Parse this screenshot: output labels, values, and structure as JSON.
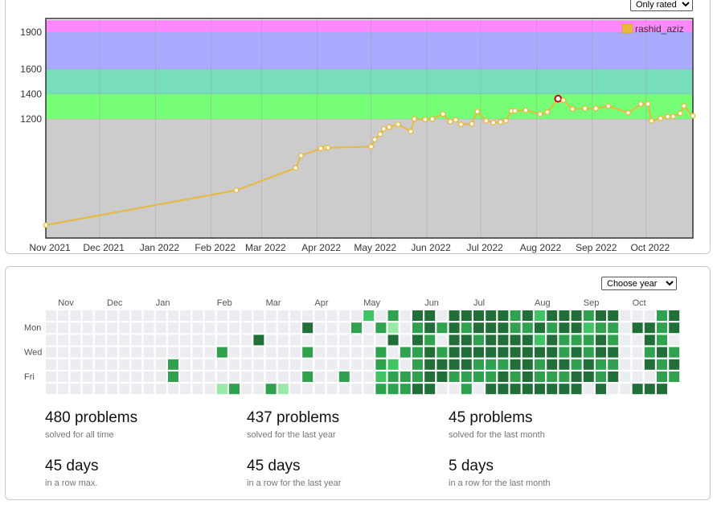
{
  "controls": {
    "rating_filter": "Only rated",
    "year_select": "Choose year"
  },
  "chart_data": {
    "type": "line",
    "title": "",
    "xlabel": "",
    "ylabel": "",
    "legend": {
      "entries": [
        "rashid_aziz"
      ],
      "placement": "top-right"
    },
    "grid": true,
    "y_ticks": [
      1200,
      1400,
      1600,
      1900
    ],
    "y_scale_breakpoints": [
      [
        0,
        0
      ],
      [
        1200,
        1200
      ],
      [
        1400,
        1400
      ],
      [
        1600,
        1600
      ],
      [
        2000,
        2000
      ]
    ],
    "x_ticks": [
      "Nov 2021",
      "Dec 2021",
      "Jan 2022",
      "Feb 2022",
      "Mar 2022",
      "Apr 2022",
      "May 2022",
      "Jun 2022",
      "Jul 2022",
      "Aug 2022",
      "Sep 2022",
      "Oct 2022"
    ],
    "xlim": [
      "2021-11-01",
      "2022-10-27"
    ],
    "ylim": [
      0,
      2000
    ],
    "bands": [
      {
        "from": 0,
        "to": 1200,
        "color": "#cccccc"
      },
      {
        "from": 1200,
        "to": 1400,
        "color": "#77ff77"
      },
      {
        "from": 1400,
        "to": 1600,
        "color": "#77ddbb"
      },
      {
        "from": 1600,
        "to": 1900,
        "color": "#aaaaff"
      },
      {
        "from": 1900,
        "to": 2000,
        "color": "#ff88ff"
      }
    ],
    "series": [
      {
        "name": "rashid_aziz",
        "color": "#e8b93a",
        "highlight": {
          "date": "2022-08-13",
          "rating": 1363
        },
        "points": [
          [
            "2021-11-01",
            10
          ],
          [
            "2022-02-15",
            400
          ],
          [
            "2022-03-20",
            650
          ],
          [
            "2022-03-23",
            790
          ],
          [
            "2022-04-03",
            870
          ],
          [
            "2022-04-06",
            880
          ],
          [
            "2022-04-07",
            878
          ],
          [
            "2022-05-01",
            890
          ],
          [
            "2022-05-03",
            970
          ],
          [
            "2022-05-06",
            1030
          ],
          [
            "2022-05-08",
            1090
          ],
          [
            "2022-05-11",
            1110
          ],
          [
            "2022-05-16",
            1140
          ],
          [
            "2022-05-23",
            1060
          ],
          [
            "2022-05-25",
            1200
          ],
          [
            "2022-05-31",
            1195
          ],
          [
            "2022-06-04",
            1200
          ],
          [
            "2022-06-10",
            1240
          ],
          [
            "2022-06-14",
            1170
          ],
          [
            "2022-06-17",
            1190
          ],
          [
            "2022-06-20",
            1140
          ],
          [
            "2022-06-26",
            1145
          ],
          [
            "2022-06-29",
            1260
          ],
          [
            "2022-07-04",
            1180
          ],
          [
            "2022-07-08",
            1160
          ],
          [
            "2022-07-12",
            1165
          ],
          [
            "2022-07-15",
            1180
          ],
          [
            "2022-07-18",
            1265
          ],
          [
            "2022-07-20",
            1265
          ],
          [
            "2022-07-26",
            1270
          ],
          [
            "2022-08-03",
            1240
          ],
          [
            "2022-08-07",
            1255
          ],
          [
            "2022-08-13",
            1363
          ],
          [
            "2022-08-16",
            1350
          ],
          [
            "2022-08-21",
            1280
          ],
          [
            "2022-08-28",
            1285
          ],
          [
            "2022-09-03",
            1285
          ],
          [
            "2022-09-10",
            1305
          ],
          [
            "2022-09-21",
            1250
          ],
          [
            "2022-09-28",
            1320
          ],
          [
            "2022-10-02",
            1320
          ],
          [
            "2022-10-04",
            1180
          ],
          [
            "2022-10-09",
            1205
          ],
          [
            "2022-10-13",
            1220
          ],
          [
            "2022-10-16",
            1220
          ],
          [
            "2022-10-20",
            1245
          ],
          [
            "2022-10-22",
            1305
          ],
          [
            "2022-10-27",
            1225
          ]
        ]
      }
    ]
  },
  "heatmap": {
    "month_labels": [
      "Nov",
      "Dec",
      "Jan",
      "Feb",
      "Mar",
      "Apr",
      "May",
      "Jun",
      "Jul",
      "Aug",
      "Sep",
      "Oct"
    ],
    "month_start_weeks": [
      1,
      5,
      9,
      14,
      18,
      22,
      26,
      31,
      35,
      40,
      44,
      48
    ],
    "day_labels": [
      {
        "row": 1,
        "label": "Mon"
      },
      {
        "row": 3,
        "label": "Wed"
      },
      {
        "row": 5,
        "label": "Fri"
      }
    ],
    "legend_levels": [
      "#ebedf0",
      "#9be9a8",
      "#40c463",
      "#30a14e",
      "#216e39"
    ],
    "weeks": [
      "0000000",
      "0000000",
      "0000000",
      "0000000",
      "0000000",
      "0000000",
      "0000000",
      "0000000",
      "0000000",
      "0000000",
      "0000330",
      "0000000",
      "0000000",
      "0000000",
      "0000330",
      "0000002",
      "0000000",
      "0000000",
      "0040000",
      "0000000",
      "0000000",
      "0000003",
      "0000002",
      "0000000",
      "0040000",
      "0003000",
      "0000000",
      "0000000",
      "0000000",
      "0000000",
      "0000000",
      "0000000",
      "0000000",
      "0000000",
      "0000330",
      "0000000",
      "0000000",
      "0000000",
      "0000000",
      "0000000",
      "0000000",
      "0000000",
      "0000000",
      "0000000",
      "0000000",
      "0000000",
      "0000000",
      "0000000",
      "0000000",
      "0000000",
      "0000000",
      "0000000",
      "0000000",
      "0000000",
      "0000000",
      "0000000",
      "0000000",
      "0000000",
      "0000000",
      "0000000",
      "0000000",
      "0000000",
      "0000000",
      "0000000",
      "0000000",
      "0000000",
      "0000000",
      "0000000",
      "0000000",
      "0000000",
      "0000000",
      "0000000",
      "0000000",
      "0000000",
      "0000000",
      "0000000",
      "0000000",
      "0000000",
      "0000000",
      "0000000",
      "0000000",
      "0000000",
      "0000000",
      "0000000",
      "0000000",
      "0000000",
      "0000000",
      "0000000",
      "0000000",
      "0000000",
      "0000000",
      "0000000",
      "0000000",
      "0000000",
      "0000000",
      "0000000"
    ],
    "grid": [
      "000000000000000000000000000000000000000000000000000000000000000000000000000000000000000000000000000",
      "0000000000000000000000000000000000000000000000000000000000000000000000000000000000000000000000000000"
    ],
    "weekly_cells": [
      [
        0,
        0,
        0,
        0,
        0,
        0,
        0
      ],
      [
        0,
        0,
        0,
        0,
        0,
        0,
        0
      ],
      [
        0,
        0,
        0,
        0,
        0,
        0,
        0
      ],
      [
        0,
        0,
        0,
        0,
        0,
        0,
        0
      ],
      [
        0,
        0,
        0,
        0,
        0,
        0,
        0
      ],
      [
        0,
        0,
        0,
        0,
        0,
        0,
        0
      ],
      [
        0,
        0,
        0,
        0,
        0,
        0,
        0
      ],
      [
        0,
        0,
        0,
        0,
        0,
        0,
        0
      ],
      [
        0,
        0,
        0,
        0,
        0,
        0,
        0
      ],
      [
        0,
        0,
        0,
        0,
        0,
        0,
        0
      ],
      [
        0,
        0,
        0,
        0,
        3,
        3,
        0
      ],
      [
        0,
        0,
        0,
        0,
        0,
        0,
        0
      ],
      [
        0,
        0,
        0,
        0,
        0,
        0,
        0
      ],
      [
        0,
        0,
        0,
        0,
        0,
        0,
        0
      ],
      [
        0,
        0,
        0,
        3,
        0,
        0,
        1
      ],
      [
        0,
        0,
        0,
        0,
        0,
        0,
        3
      ],
      [
        0,
        0,
        0,
        0,
        0,
        0,
        0
      ],
      [
        0,
        0,
        4,
        0,
        0,
        0,
        0
      ],
      [
        0,
        0,
        0,
        0,
        0,
        0,
        3
      ],
      [
        0,
        0,
        0,
        0,
        0,
        0,
        1
      ],
      [
        0,
        0,
        0,
        0,
        0,
        0,
        0
      ],
      [
        0,
        4,
        0,
        3,
        0,
        3,
        0
      ],
      [
        0,
        0,
        0,
        0,
        0,
        0,
        0
      ],
      [
        0,
        0,
        0,
        0,
        0,
        0,
        0
      ],
      [
        0,
        0,
        0,
        0,
        0,
        3,
        0
      ],
      [
        0,
        3,
        0,
        0,
        0,
        0,
        0
      ],
      [
        2,
        0,
        0,
        0,
        0,
        0,
        0
      ],
      [
        0,
        3,
        0,
        3,
        3,
        2,
        3
      ],
      [
        3,
        1,
        4,
        0,
        2,
        3,
        3
      ],
      [
        0,
        0,
        0,
        3,
        0,
        3,
        3
      ],
      [
        4,
        3,
        4,
        3,
        3,
        3,
        4
      ],
      [
        4,
        4,
        3,
        4,
        4,
        4,
        4
      ],
      [
        0,
        3,
        0,
        3,
        4,
        4,
        0
      ],
      [
        4,
        4,
        4,
        4,
        4,
        3,
        0
      ],
      [
        4,
        3,
        4,
        4,
        4,
        3,
        3
      ],
      [
        4,
        4,
        3,
        4,
        3,
        3,
        0
      ],
      [
        4,
        4,
        4,
        4,
        3,
        3,
        4
      ],
      [
        4,
        4,
        4,
        4,
        3,
        4,
        4
      ],
      [
        3,
        3,
        4,
        4,
        4,
        3,
        4
      ],
      [
        4,
        3,
        4,
        4,
        4,
        4,
        4
      ],
      [
        2,
        4,
        2,
        4,
        3,
        3,
        4
      ],
      [
        4,
        3,
        4,
        4,
        4,
        3,
        4
      ],
      [
        4,
        4,
        3,
        3,
        4,
        3,
        4
      ],
      [
        4,
        4,
        3,
        4,
        3,
        4,
        4
      ],
      [
        3,
        2,
        3,
        3,
        4,
        4,
        0
      ],
      [
        4,
        3,
        4,
        4,
        3,
        3,
        4
      ],
      [
        4,
        3,
        3,
        4,
        3,
        4,
        0
      ],
      [
        0,
        0,
        0,
        0,
        0,
        0,
        0
      ],
      [
        0,
        4,
        0,
        0,
        0,
        0,
        4
      ],
      [
        0,
        4,
        4,
        3,
        4,
        0,
        4
      ],
      [
        3,
        3,
        3,
        4,
        3,
        3,
        4
      ],
      [
        4,
        4,
        0,
        3,
        4,
        3,
        4
      ],
      [
        3,
        3,
        4,
        4,
        3,
        4,
        0
      ],
      [
        4,
        4,
        2,
        3,
        4,
        3,
        4
      ],
      [
        2,
        3,
        4,
        4,
        3,
        3,
        4
      ],
      [
        3,
        4,
        3,
        2,
        3,
        4,
        0
      ],
      [
        4,
        4,
        0,
        4,
        3,
        4,
        0
      ],
      [
        4,
        3,
        2,
        3,
        4,
        3,
        0
      ],
      [
        3,
        4,
        3,
        4,
        3,
        3,
        0
      ],
      [
        3,
        3,
        4,
        4,
        3,
        0,
        0
      ],
      [
        4,
        4,
        4,
        3,
        4,
        3,
        0
      ],
      [
        3,
        3,
        4,
        3,
        3,
        4,
        0
      ],
      [
        4,
        4,
        3,
        3,
        4,
        3,
        0
      ],
      [
        3,
        3,
        3,
        4,
        4,
        3,
        0
      ],
      [
        4,
        3,
        2,
        4,
        3,
        3,
        0
      ],
      [
        4,
        3,
        4,
        3,
        4,
        3,
        0
      ],
      [
        3,
        4,
        3,
        3,
        4,
        3,
        0
      ]
    ],
    "cells": {
      "note": "",
      "rows": [
        "0000000000000000000020000222324242424434343432430442442022202222020002222",
        "0000000000000000000430042343443443434344343443434443042434344434343334343",
        "0000000000000000000300004333433443444344344343404443434443433343434343343",
        "0000000000000000000200030323444433434444344434330043344343344343434343344",
        "0000000000300300000020002332433443434343443433443444323434343434343343343",
        "0000000000300300000000302343434343443434343433443433433443434343434343344",
        "0000000000000001110120033433443443434443434443430044430033443443000000000"
      ]
    }
  },
  "stats": [
    {
      "value": "480 problems",
      "caption": "solved for all time"
    },
    {
      "value": "437 problems",
      "caption": "solved for the last year"
    },
    {
      "value": "45 problems",
      "caption": "solved for the last month"
    },
    {
      "value": "45 days",
      "caption": "in a row max."
    },
    {
      "value": "45 days",
      "caption": "in a row for the last year"
    },
    {
      "value": "5 days",
      "caption": "in a row for the last month"
    }
  ]
}
